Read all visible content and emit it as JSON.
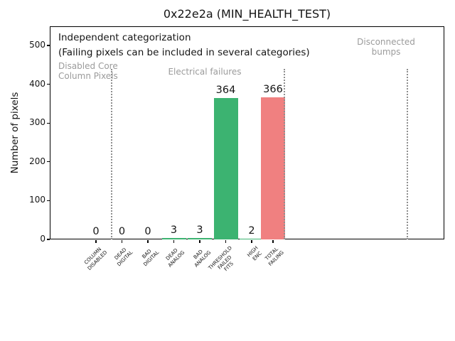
{
  "chart_data": {
    "type": "bar",
    "title": "0x22e2a (MIN_HEALTH_TEST)",
    "ylabel": "Number of pixels",
    "ylim": [
      0,
      550
    ],
    "yticks": [
      0,
      100,
      200,
      300,
      400,
      500
    ],
    "categories": [
      "COLUMN\nDISABLED",
      "DEAD\nDIGITAL",
      "BAD\nDIGITAL",
      "DEAD\nANALOG",
      "BAD\nANALOG",
      "THRESHOLD\nFAILED\nFITS",
      "HIGH\nENC",
      "TOTAL\nFAILING"
    ],
    "values": [
      0,
      0,
      0,
      3,
      3,
      364,
      2,
      366
    ],
    "colors": [
      "#3cb371",
      "#3cb371",
      "#3cb371",
      "#3cb371",
      "#3cb371",
      "#3cb371",
      "#3cb371",
      "#f08080"
    ],
    "bar_color_default": "#3cb371",
    "bar_color_total": "#f08080",
    "grid": false,
    "legend": null,
    "separators": {
      "style": "dotted",
      "color": "#8f8f8f",
      "count": 3
    },
    "annotations": {
      "independent": "Independent categorization",
      "failing_note": "(Failing pixels can be included in several categories)",
      "disabled_core": [
        "Disabled Core",
        "Column Pixels"
      ],
      "electrical": "Electrical failures",
      "disconnected": [
        "Disconnected",
        "bumps"
      ]
    },
    "gray_text_color": "#9b9b9b"
  }
}
